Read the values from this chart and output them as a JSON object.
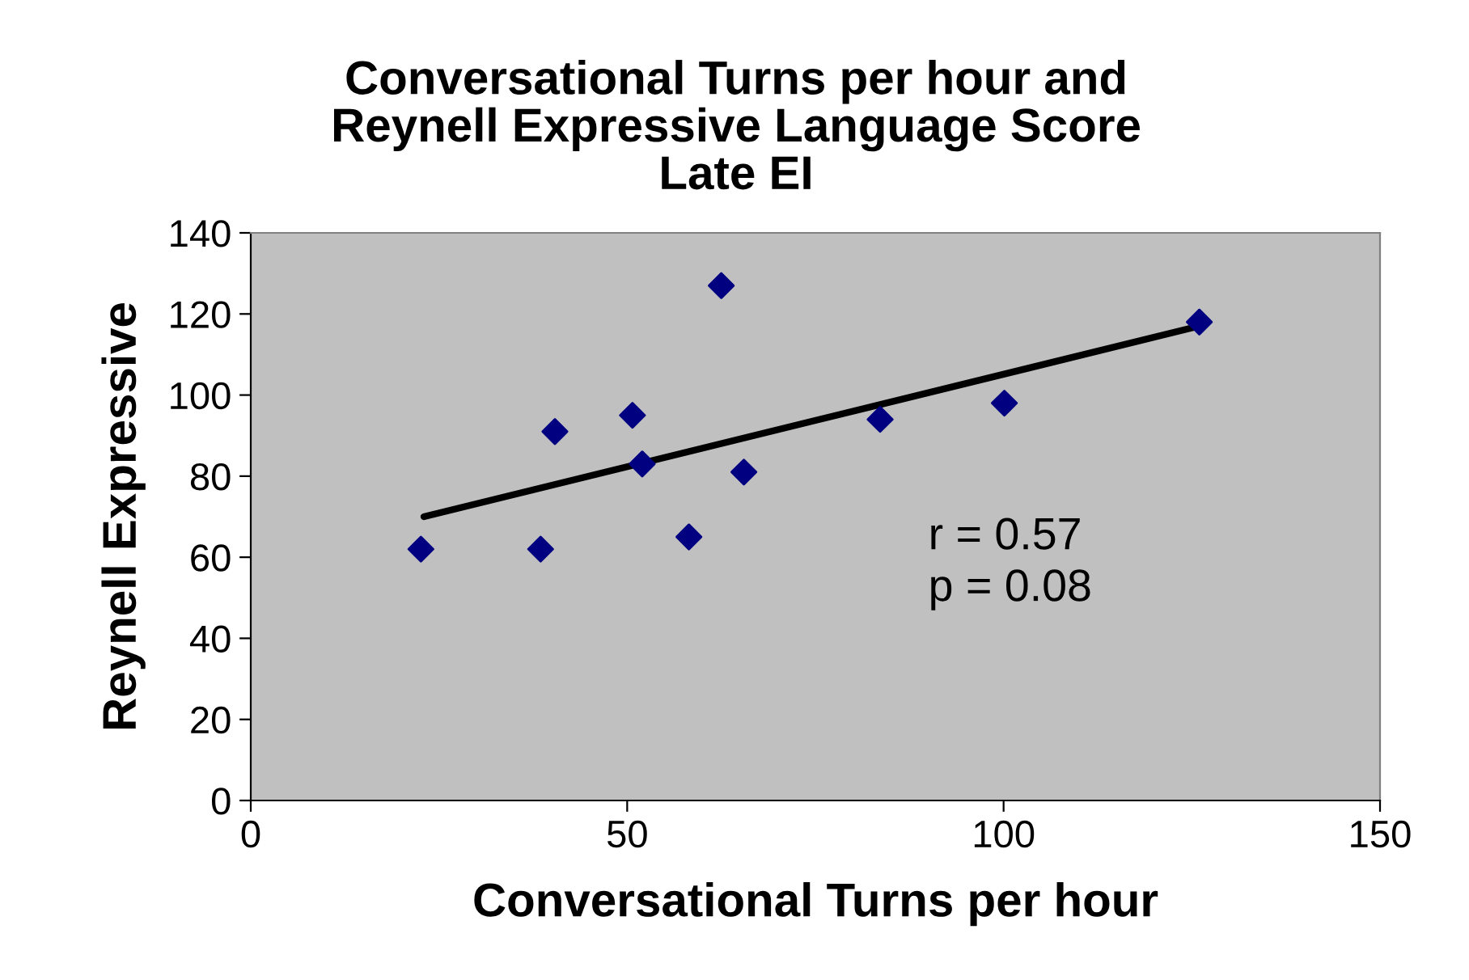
{
  "chart_data": {
    "type": "scatter",
    "title": "Conversational Turns per hour and\nReynell Expressive Language Score\nLate EI",
    "xlabel": "Conversational Turns per hour",
    "ylabel": "Reynell Expressive",
    "x": [
      22.6,
      38.5,
      40.4,
      50.7,
      52.0,
      58.2,
      62.5,
      65.5,
      83.6,
      100.1,
      126
    ],
    "series": [
      {
        "color": "#000080",
        "marker": "diamond",
        "values": [
          62,
          62,
          91,
          95,
          83,
          65,
          127,
          81,
          94,
          98,
          118
        ]
      },
      {
        "type": "line",
        "color": "#000000",
        "x": [
          23,
          126
        ],
        "values": [
          70,
          117
        ],
        "marker": "none",
        "line_style": "solid"
      }
    ],
    "xlim": [
      0,
      150
    ],
    "xticks": [
      0,
      50,
      100,
      150
    ],
    "ylim": [
      0,
      140
    ],
    "yticks": [
      0,
      20,
      40,
      60,
      80,
      100,
      120,
      140
    ],
    "grid": false,
    "legend": false,
    "annotations": [
      "r = 0.57\np = 0.08"
    ]
  }
}
